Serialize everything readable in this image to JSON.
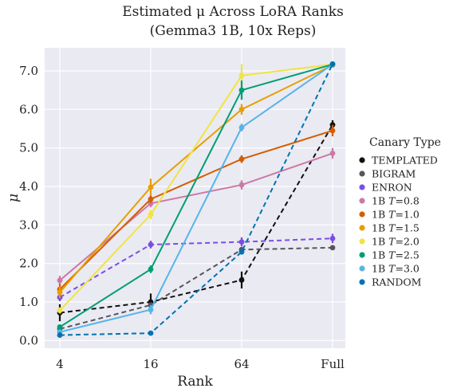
{
  "chart_data": {
    "type": "line",
    "title_line1": "Estimated μ Across LoRA Ranks",
    "title_line2": "(Gemma3 1B, 10x Reps)",
    "xlabel": "Rank",
    "ylabel": "μ",
    "categories": [
      "4",
      "16",
      "64",
      "Full"
    ],
    "ylim": [
      -0.2,
      7.6
    ],
    "yticks": [
      "0.0",
      "1.0",
      "2.0",
      "3.0",
      "4.0",
      "5.0",
      "6.0",
      "7.0"
    ],
    "ytick_values": [
      0,
      1,
      2,
      3,
      4,
      5,
      6,
      7
    ],
    "grid": true,
    "legend_title": "Canary Type",
    "legend_position": "right",
    "series": [
      {
        "name": "TEMPLATED",
        "label_plain": "TEMPLATED",
        "color": "#111111",
        "dashed": true,
        "values": [
          0.72,
          1.0,
          1.57,
          5.6
        ],
        "errors": [
          0.22,
          0.22,
          0.22,
          0.12
        ]
      },
      {
        "name": "BIGRAM",
        "label_plain": "BIGRAM",
        "color": "#56545f",
        "dashed": true,
        "values": [
          0.3,
          0.92,
          2.36,
          2.41
        ],
        "errors": [
          0.05,
          0.05,
          0.06,
          0.05
        ]
      },
      {
        "name": "ENRON",
        "label_plain": "ENRON",
        "color": "#7b4de3",
        "dashed": true,
        "values": [
          1.12,
          2.49,
          2.56,
          2.65
        ],
        "errors": [
          0.1,
          0.1,
          0.12,
          0.12
        ]
      },
      {
        "name": "1B T=0.8",
        "label_plain": "1B ",
        "label_T": "T",
        "label_val": "=0.8",
        "color": "#cc79a7",
        "dashed": false,
        "values": [
          1.56,
          3.56,
          4.04,
          4.86
        ],
        "errors": [
          0.12,
          0.1,
          0.12,
          0.14
        ]
      },
      {
        "name": "1B T=1.0",
        "label_plain": "1B ",
        "label_T": "T",
        "label_val": "=1.0",
        "color": "#d55e00",
        "dashed": false,
        "values": [
          1.33,
          3.67,
          4.71,
          5.45
        ],
        "errors": [
          0.14,
          0.1,
          0.1,
          0.15
        ]
      },
      {
        "name": "1B T=1.5",
        "label_plain": "1B ",
        "label_T": "T",
        "label_val": "=1.5",
        "color": "#e69f00",
        "dashed": false,
        "values": [
          1.25,
          3.98,
          6.0,
          7.15
        ],
        "errors": [
          0.15,
          0.22,
          0.14,
          0.06
        ]
      },
      {
        "name": "1B T=2.0",
        "label_plain": "1B ",
        "label_T": "T",
        "label_val": "=2.0",
        "color": "#f0e442",
        "dashed": false,
        "values": [
          0.78,
          3.27,
          6.88,
          7.17
        ],
        "errors": [
          0.08,
          0.12,
          0.3,
          0.05
        ]
      },
      {
        "name": "1B T=2.5",
        "label_plain": "1B ",
        "label_T": "T",
        "label_val": "=2.5",
        "color": "#009e73",
        "dashed": false,
        "values": [
          0.35,
          1.85,
          6.5,
          7.17
        ],
        "errors": [
          0.06,
          0.1,
          0.25,
          0.05
        ]
      },
      {
        "name": "1B T=3.0",
        "label_plain": "1B ",
        "label_T": "T",
        "label_val": "=3.0",
        "color": "#56b4e9",
        "dashed": false,
        "values": [
          0.22,
          0.8,
          5.53,
          7.17
        ],
        "errors": [
          0.05,
          0.12,
          0.1,
          0.05
        ]
      },
      {
        "name": "RANDOM",
        "label_plain": "RANDOM",
        "color": "#0173b2",
        "dashed": true,
        "values": [
          0.14,
          0.19,
          2.3,
          7.18
        ],
        "errors": [
          0.04,
          0.04,
          0.06,
          0.04
        ]
      }
    ]
  }
}
